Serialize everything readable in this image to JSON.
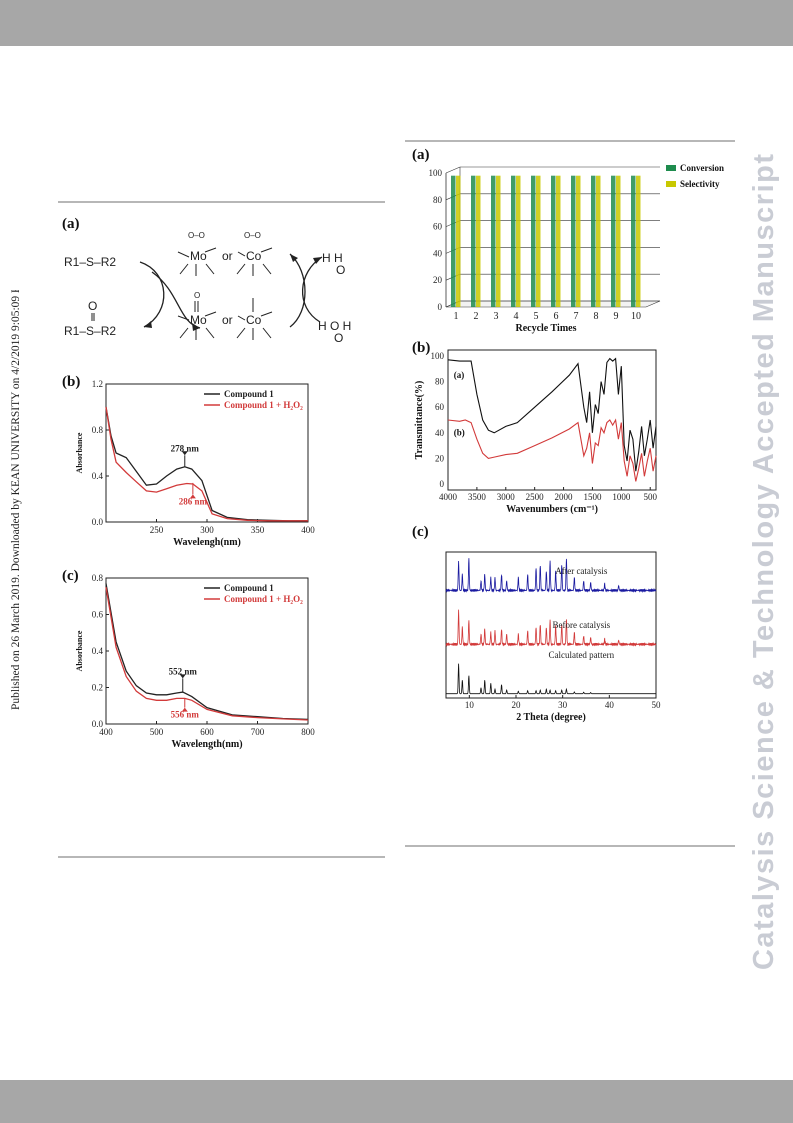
{
  "sidebar_text": "Published on 26 March 2019. Downloaded by KEAN UNIVERSITY on 4/2/2019 9:05:09 PM.",
  "watermark": "Catalysis Science & Technology Accepted Manuscript",
  "colors": {
    "band": "#a7a7a7",
    "watermark": "#c9ccd4",
    "red": "#d23a3a",
    "blue": "#1a1aa0",
    "black": "#111111",
    "green": "#1e8c4e",
    "yellow": "#c8c800"
  },
  "left_figure": {
    "scheme": {
      "label": "(a)",
      "reactant": "R1–S–R2",
      "product_O": "O",
      "product": "R1–S–R2",
      "mo_top": "Mo",
      "co_top": "Co",
      "or1": "or",
      "mo_bottom": "Mo",
      "co_bottom": "Co",
      "or2": "or",
      "water": "H   H",
      "water_O": "O",
      "peroxide": "H   O   H",
      "peroxide_O": "O",
      "top_O": "O–O",
      "bottom_O": "O"
    },
    "panel_b_label": "(b)",
    "panel_c_label": "(c)"
  },
  "chart_data": [
    {
      "type": "line",
      "panel": "(b)",
      "xlabel": "Wavelengh(nm)",
      "ylabel": "Absorbance",
      "xlim": [
        200,
        400
      ],
      "ylim": [
        0.0,
        1.2
      ],
      "xticks": [
        "250",
        "300",
        "350",
        "400"
      ],
      "yticks": [
        "0.0",
        "0.4",
        "0.8",
        "1.2"
      ],
      "legend": "top-right",
      "annotations": [
        "278 nm",
        "286 nm"
      ],
      "series": [
        {
          "name": "Compound 1",
          "color": "#222222",
          "x": [
            200,
            205,
            210,
            220,
            230,
            240,
            250,
            260,
            270,
            278,
            285,
            295,
            305,
            320,
            340,
            360,
            380,
            400
          ],
          "y": [
            1.0,
            0.75,
            0.6,
            0.56,
            0.44,
            0.32,
            0.33,
            0.4,
            0.46,
            0.48,
            0.46,
            0.36,
            0.1,
            0.04,
            0.02,
            0.015,
            0.01,
            0.01
          ]
        },
        {
          "name": "Compound 1 + H₂O₂",
          "color": "#d23a3a",
          "x": [
            200,
            205,
            210,
            220,
            230,
            240,
            250,
            260,
            270,
            280,
            286,
            295,
            305,
            320,
            340,
            360,
            380,
            400
          ],
          "y": [
            1.0,
            0.72,
            0.52,
            0.43,
            0.35,
            0.27,
            0.26,
            0.29,
            0.32,
            0.335,
            0.33,
            0.27,
            0.07,
            0.03,
            0.015,
            0.01,
            0.01,
            0.01
          ]
        }
      ]
    },
    {
      "type": "line",
      "panel": "(c)",
      "xlabel": "Wavelength(nm)",
      "ylabel": "Absorbance",
      "xlim": [
        400,
        800
      ],
      "ylim": [
        0.0,
        0.8
      ],
      "xticks": [
        "400",
        "500",
        "600",
        "700",
        "800"
      ],
      "yticks": [
        "0.0",
        "0.2",
        "0.4",
        "0.6",
        "0.8"
      ],
      "legend": "top-right",
      "annotations": [
        "552 nm",
        "556 nm"
      ],
      "series": [
        {
          "name": "Compound 1",
          "color": "#222222",
          "x": [
            400,
            420,
            440,
            460,
            480,
            500,
            520,
            540,
            552,
            570,
            600,
            650,
            700,
            750,
            800
          ],
          "y": [
            0.77,
            0.45,
            0.29,
            0.21,
            0.17,
            0.16,
            0.16,
            0.17,
            0.175,
            0.15,
            0.09,
            0.05,
            0.04,
            0.03,
            0.025
          ]
        },
        {
          "name": "Compound 1 + H₂O₂",
          "color": "#d23a3a",
          "x": [
            400,
            420,
            440,
            460,
            480,
            500,
            520,
            540,
            556,
            570,
            600,
            650,
            700,
            750,
            800
          ],
          "y": [
            0.75,
            0.42,
            0.26,
            0.18,
            0.14,
            0.13,
            0.13,
            0.14,
            0.14,
            0.13,
            0.08,
            0.045,
            0.035,
            0.028,
            0.022
          ]
        }
      ]
    },
    {
      "type": "bar",
      "panel": "(a)",
      "xlabel": "Recycle Times",
      "ylabel": "",
      "categories": [
        "1",
        "2",
        "3",
        "4",
        "5",
        "6",
        "7",
        "8",
        "9",
        "10"
      ],
      "ylim": [
        0,
        100
      ],
      "yticks": [
        "0",
        "20",
        "40",
        "60",
        "80",
        "100"
      ],
      "legend": "top-right",
      "series": [
        {
          "name": "Conversion",
          "color": "#1e8c4e",
          "values": [
            98,
            98,
            98,
            98,
            98,
            98,
            98,
            98,
            98,
            98
          ]
        },
        {
          "name": "Selectivity",
          "color": "#c8c800",
          "values": [
            98,
            98,
            98,
            98,
            98,
            98,
            98,
            98,
            98,
            98
          ]
        }
      ]
    },
    {
      "type": "line",
      "panel": "(b)",
      "xlabel": "Wavenumbers (cm⁻¹)",
      "ylabel": "Transmittance(%)",
      "xlim": [
        4000,
        400
      ],
      "ylim": [
        0,
        100
      ],
      "xticks": [
        "4000",
        "3500",
        "3000",
        "2500",
        "2000",
        "1500",
        "1000",
        "500"
      ],
      "yticks": [
        "0",
        "20",
        "40",
        "60",
        "80",
        "100"
      ],
      "series": [
        {
          "name": "(a)",
          "color": "#111111",
          "x": [
            4000,
            3800,
            3600,
            3500,
            3400,
            3300,
            3200,
            3000,
            2800,
            2500,
            2200,
            1900,
            1750,
            1650,
            1600,
            1550,
            1500,
            1450,
            1400,
            1350,
            1300,
            1250,
            1200,
            1150,
            1100,
            1050,
            1000,
            950,
            900,
            850,
            800,
            750,
            700,
            650,
            600,
            550,
            500,
            450,
            400
          ],
          "y": [
            97,
            96,
            96,
            70,
            50,
            42,
            40,
            45,
            48,
            60,
            72,
            85,
            94,
            60,
            48,
            72,
            40,
            62,
            55,
            80,
            70,
            95,
            98,
            96,
            98,
            70,
            92,
            30,
            18,
            42,
            35,
            10,
            25,
            45,
            22,
            35,
            50,
            28,
            45
          ]
        },
        {
          "name": "(b)",
          "color": "#d23a3a",
          "x": [
            4000,
            3800,
            3700,
            3600,
            3500,
            3400,
            3300,
            3200,
            3000,
            2800,
            2500,
            2200,
            1900,
            1750,
            1650,
            1600,
            1550,
            1500,
            1450,
            1400,
            1350,
            1300,
            1250,
            1200,
            1150,
            1100,
            1050,
            1000,
            950,
            900,
            850,
            800,
            750,
            700,
            650,
            600,
            550,
            500,
            450,
            400
          ],
          "y": [
            50,
            49,
            50,
            48,
            35,
            24,
            20,
            21,
            23,
            24,
            30,
            36,
            43,
            48,
            22,
            28,
            40,
            16,
            32,
            30,
            44,
            40,
            48,
            50,
            46,
            50,
            35,
            48,
            18,
            6,
            22,
            16,
            2,
            12,
            24,
            6,
            18,
            28,
            10,
            22
          ]
        }
      ]
    },
    {
      "type": "line",
      "panel": "(c)",
      "xlabel": "2 Theta (degree)",
      "ylabel": "",
      "xlim": [
        5,
        50
      ],
      "xticks": [
        "10",
        "20",
        "30",
        "40",
        "50"
      ],
      "series": [
        {
          "name": "After catalysis",
          "color": "#1a1aa0",
          "peaks": [
            [
              7.7,
              0.9
            ],
            [
              8.5,
              0.5
            ],
            [
              9.9,
              1.0
            ],
            [
              12.5,
              0.3
            ],
            [
              13.3,
              0.5
            ],
            [
              14.6,
              0.4
            ],
            [
              15.5,
              0.4
            ],
            [
              16.9,
              0.5
            ],
            [
              18.0,
              0.3
            ],
            [
              20.5,
              0.4
            ],
            [
              22.5,
              0.5
            ],
            [
              24.3,
              0.7
            ],
            [
              25.2,
              0.8
            ],
            [
              26.5,
              0.6
            ],
            [
              27.3,
              0.9
            ],
            [
              28.5,
              0.6
            ],
            [
              29.8,
              0.8
            ],
            [
              30.8,
              1.0
            ],
            [
              32.5,
              0.4
            ],
            [
              34.5,
              0.3
            ],
            [
              36.0,
              0.25
            ],
            [
              39.0,
              0.2
            ],
            [
              42.0,
              0.15
            ]
          ]
        },
        {
          "name": "Before catalysis",
          "color": "#d23a3a",
          "peaks": [
            [
              7.7,
              1.0
            ],
            [
              8.5,
              0.5
            ],
            [
              9.9,
              0.7
            ],
            [
              12.5,
              0.3
            ],
            [
              13.3,
              0.45
            ],
            [
              14.6,
              0.35
            ],
            [
              15.5,
              0.4
            ],
            [
              16.9,
              0.45
            ],
            [
              18.0,
              0.3
            ],
            [
              20.5,
              0.3
            ],
            [
              22.5,
              0.4
            ],
            [
              24.3,
              0.5
            ],
            [
              25.2,
              0.6
            ],
            [
              26.5,
              0.5
            ],
            [
              27.3,
              0.7
            ],
            [
              28.5,
              0.55
            ],
            [
              29.8,
              0.6
            ],
            [
              30.8,
              0.75
            ],
            [
              32.5,
              0.35
            ],
            [
              34.5,
              0.25
            ],
            [
              36.0,
              0.2
            ],
            [
              39.0,
              0.15
            ],
            [
              42.0,
              0.12
            ]
          ]
        },
        {
          "name": "Calculated pattern",
          "color": "#111111",
          "peaks": [
            [
              7.7,
              1.0
            ],
            [
              8.5,
              0.45
            ],
            [
              9.9,
              0.6
            ],
            [
              12.5,
              0.2
            ],
            [
              13.3,
              0.45
            ],
            [
              14.6,
              0.35
            ],
            [
              15.5,
              0.15
            ],
            [
              16.9,
              0.3
            ],
            [
              18.0,
              0.12
            ],
            [
              20.5,
              0.08
            ],
            [
              22.5,
              0.1
            ],
            [
              24.3,
              0.1
            ],
            [
              25.2,
              0.12
            ],
            [
              26.5,
              0.15
            ],
            [
              27.3,
              0.12
            ],
            [
              28.5,
              0.1
            ],
            [
              29.8,
              0.12
            ],
            [
              30.8,
              0.15
            ],
            [
              32.5,
              0.06
            ],
            [
              34.5,
              0.05
            ],
            [
              36.0,
              0.04
            ]
          ]
        }
      ]
    }
  ]
}
